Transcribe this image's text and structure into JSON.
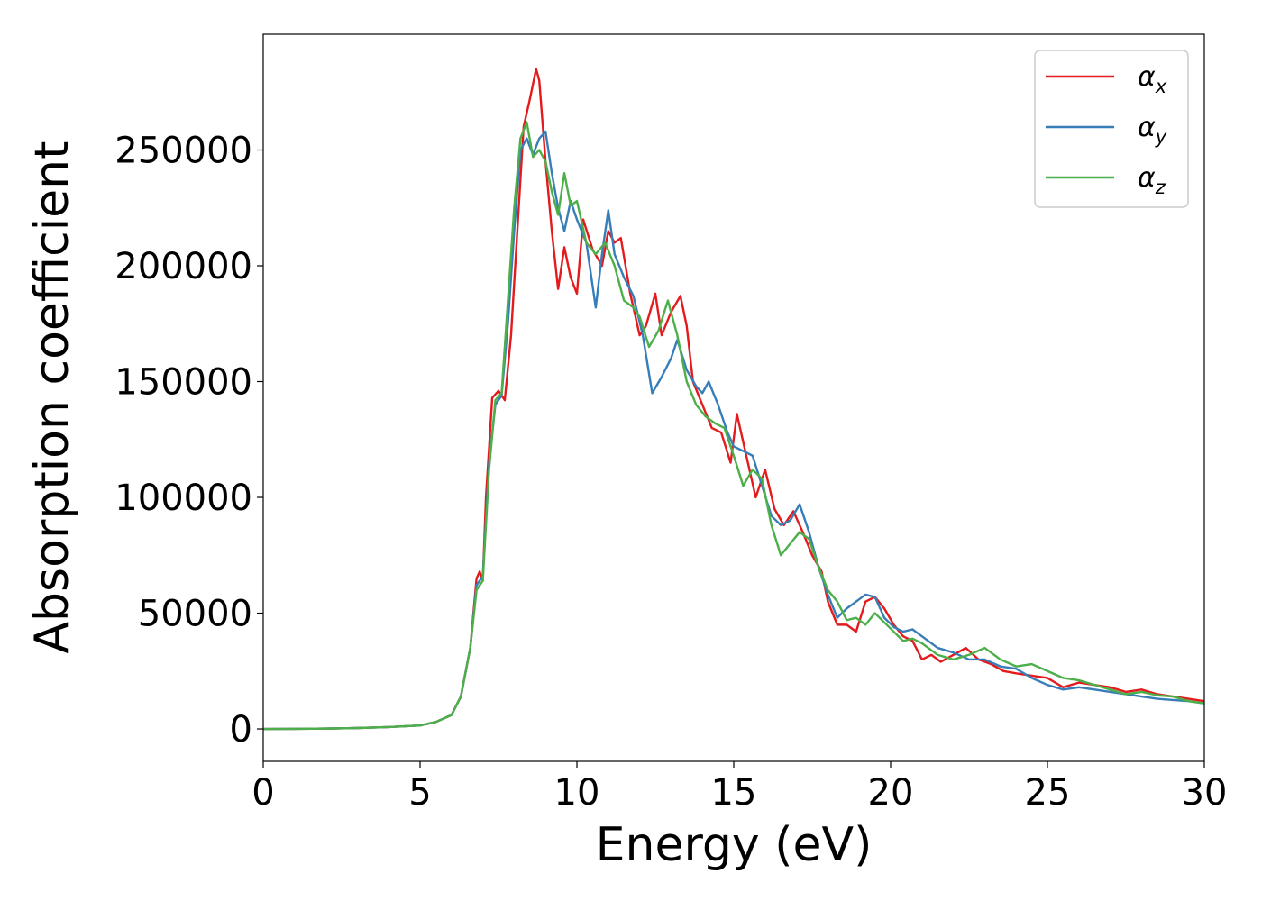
{
  "chart_data": {
    "type": "line",
    "title": "",
    "xlabel": "Energy (eV)",
    "ylabel": "Absorption coefficient",
    "xlim": [
      0,
      30
    ],
    "ylim": [
      -14000,
      300000
    ],
    "xticks": [
      0,
      5,
      10,
      15,
      20,
      25,
      30
    ],
    "yticks": [
      0,
      50000,
      100000,
      150000,
      200000,
      250000
    ],
    "grid": false,
    "legend_position": "top-right",
    "series": [
      {
        "name": "α_x",
        "symbol": "α",
        "subscript": "x",
        "color": "#e41a1c",
        "x": [
          0,
          1,
          2,
          3,
          4,
          5,
          5.5,
          6,
          6.3,
          6.6,
          6.8,
          6.9,
          7.0,
          7.1,
          7.3,
          7.5,
          7.7,
          7.9,
          8.1,
          8.3,
          8.5,
          8.7,
          8.8,
          9.0,
          9.2,
          9.4,
          9.6,
          9.8,
          10.0,
          10.2,
          10.5,
          10.8,
          11.0,
          11.2,
          11.4,
          11.7,
          12.0,
          12.2,
          12.5,
          12.7,
          13.0,
          13.3,
          13.5,
          13.7,
          14.0,
          14.3,
          14.6,
          14.9,
          15.1,
          15.4,
          15.7,
          16.0,
          16.3,
          16.6,
          16.9,
          17.2,
          17.5,
          17.8,
          18.0,
          18.3,
          18.6,
          18.9,
          19.2,
          19.5,
          19.8,
          20.1,
          20.4,
          20.7,
          21.0,
          21.3,
          21.6,
          22.0,
          22.4,
          22.8,
          23.2,
          23.6,
          24.0,
          24.5,
          25.0,
          25.5,
          26.0,
          26.5,
          27.0,
          27.5,
          28.0,
          28.5,
          29.0,
          29.5,
          30.0
        ],
        "values": [
          0,
          50,
          150,
          400,
          800,
          1500,
          3000,
          6000,
          14000,
          35000,
          65000,
          68000,
          64000,
          100000,
          143000,
          146000,
          142000,
          170000,
          215000,
          260000,
          272000,
          285000,
          280000,
          245000,
          215000,
          190000,
          208000,
          195000,
          188000,
          220000,
          207000,
          200000,
          215000,
          210000,
          212000,
          188000,
          170000,
          174000,
          188000,
          170000,
          180000,
          187000,
          174000,
          150000,
          140000,
          130000,
          128000,
          115000,
          136000,
          118000,
          100000,
          112000,
          95000,
          88000,
          94000,
          85000,
          75000,
          68000,
          55000,
          45000,
          45000,
          42000,
          55000,
          57000,
          52000,
          45000,
          40000,
          38000,
          30000,
          32000,
          29000,
          32000,
          35000,
          30000,
          28000,
          25000,
          24000,
          23000,
          22000,
          18000,
          20000,
          19000,
          18000,
          16000,
          17000,
          15000,
          14000,
          13000,
          12000
        ]
      },
      {
        "name": "α_y",
        "symbol": "α",
        "subscript": "y",
        "color": "#377eb8",
        "x": [
          0,
          1,
          2,
          3,
          4,
          5,
          5.5,
          6,
          6.3,
          6.6,
          6.8,
          7.0,
          7.2,
          7.4,
          7.6,
          7.8,
          8.0,
          8.2,
          8.4,
          8.6,
          8.8,
          9.0,
          9.2,
          9.4,
          9.6,
          9.8,
          10.0,
          10.3,
          10.6,
          10.8,
          11.0,
          11.2,
          11.5,
          11.8,
          12.1,
          12.4,
          12.7,
          13.0,
          13.2,
          13.5,
          13.8,
          14.0,
          14.2,
          14.5,
          14.8,
          15.0,
          15.3,
          15.6,
          15.9,
          16.2,
          16.5,
          16.8,
          17.1,
          17.4,
          17.7,
          18.0,
          18.3,
          18.6,
          18.9,
          19.2,
          19.5,
          19.8,
          20.1,
          20.4,
          20.7,
          21.0,
          21.5,
          22.0,
          22.5,
          23.0,
          23.5,
          24.0,
          24.5,
          25.0,
          25.5,
          26.0,
          26.5,
          27.0,
          27.5,
          28.0,
          28.5,
          29.0,
          29.5,
          30.0
        ],
        "values": [
          0,
          50,
          150,
          400,
          800,
          1500,
          3000,
          6000,
          14000,
          35000,
          62000,
          66000,
          115000,
          140000,
          144000,
          175000,
          215000,
          250000,
          255000,
          248000,
          255000,
          258000,
          240000,
          225000,
          215000,
          228000,
          220000,
          210000,
          182000,
          205000,
          224000,
          205000,
          195000,
          187000,
          170000,
          145000,
          152000,
          160000,
          168000,
          155000,
          148000,
          145000,
          150000,
          140000,
          128000,
          122000,
          120000,
          118000,
          105000,
          92000,
          88000,
          90000,
          97000,
          85000,
          70000,
          58000,
          48000,
          52000,
          55000,
          58000,
          57000,
          48000,
          44000,
          42000,
          43000,
          40000,
          35000,
          33000,
          30000,
          30000,
          27000,
          26000,
          22000,
          19000,
          17000,
          18000,
          17000,
          16000,
          15000,
          14000,
          13000,
          12500,
          12000,
          11000
        ]
      },
      {
        "name": "α_z",
        "symbol": "α",
        "subscript": "z",
        "color": "#4daf4a",
        "x": [
          0,
          1,
          2,
          3,
          4,
          5,
          5.5,
          6,
          6.3,
          6.6,
          6.8,
          7.0,
          7.2,
          7.4,
          7.6,
          7.8,
          8.0,
          8.2,
          8.4,
          8.6,
          8.8,
          9.0,
          9.2,
          9.4,
          9.6,
          9.8,
          10.0,
          10.3,
          10.6,
          10.9,
          11.2,
          11.5,
          11.8,
          12.0,
          12.3,
          12.6,
          12.9,
          13.2,
          13.5,
          13.8,
          14.1,
          14.4,
          14.7,
          15.0,
          15.3,
          15.6,
          15.9,
          16.2,
          16.5,
          16.8,
          17.1,
          17.4,
          17.7,
          18.0,
          18.3,
          18.6,
          18.9,
          19.2,
          19.5,
          19.8,
          20.1,
          20.4,
          20.7,
          21.0,
          21.5,
          22.0,
          22.5,
          23.0,
          23.5,
          24.0,
          24.5,
          25.0,
          25.5,
          26.0,
          26.5,
          27.0,
          27.5,
          28.0,
          28.5,
          29.0,
          29.5,
          30.0
        ],
        "values": [
          0,
          50,
          150,
          400,
          800,
          1500,
          3000,
          6000,
          14000,
          35000,
          60000,
          64000,
          112000,
          142000,
          145000,
          185000,
          225000,
          255000,
          262000,
          247000,
          250000,
          245000,
          232000,
          222000,
          240000,
          226000,
          228000,
          210000,
          205000,
          210000,
          200000,
          185000,
          182000,
          178000,
          165000,
          172000,
          185000,
          170000,
          150000,
          140000,
          135000,
          132000,
          130000,
          118000,
          105000,
          112000,
          108000,
          88000,
          75000,
          80000,
          85000,
          82000,
          70000,
          60000,
          55000,
          47000,
          48000,
          45000,
          50000,
          46000,
          42000,
          38000,
          39000,
          37000,
          32000,
          30000,
          32000,
          35000,
          30000,
          27000,
          28000,
          25000,
          22000,
          21000,
          19000,
          17000,
          15000,
          16000,
          14500,
          14000,
          12000,
          11000
        ]
      }
    ]
  }
}
